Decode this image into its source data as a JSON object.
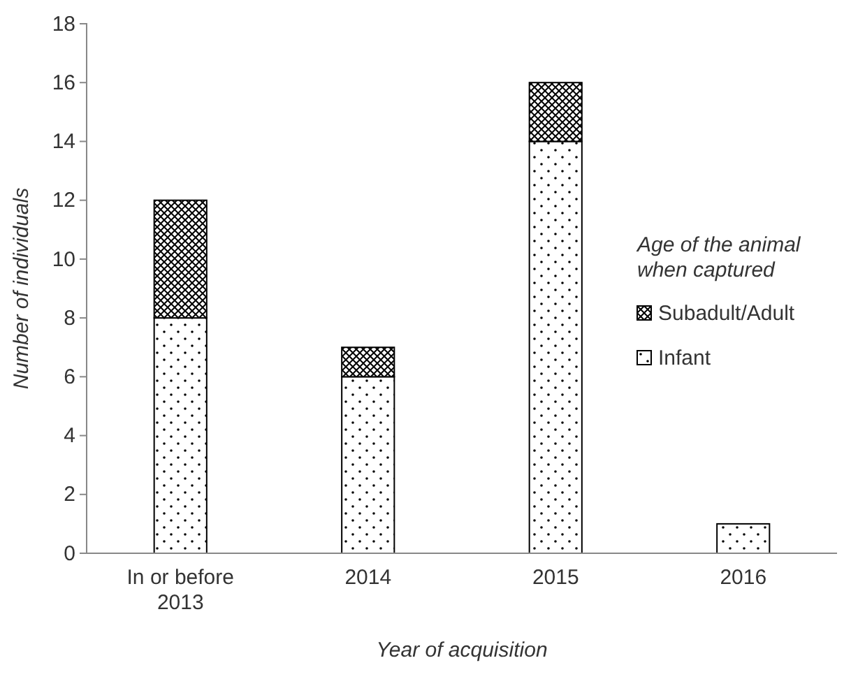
{
  "chart_data": {
    "type": "bar",
    "stacked": true,
    "xlabel": "Year of acquisition",
    "ylabel": "Number of individuals",
    "categories": [
      "In or before 2013",
      "2014",
      "2015",
      "2016"
    ],
    "series": [
      {
        "name": "Infant",
        "color": "#000000",
        "values": [
          8,
          6,
          14,
          1
        ]
      },
      {
        "name": "Subadult/Adult",
        "color": "#000000",
        "values": [
          4,
          1,
          2,
          0
        ]
      }
    ],
    "ylim": [
      0,
      18
    ],
    "yticks": [
      0,
      2,
      4,
      6,
      8,
      10,
      12,
      14,
      16,
      18
    ],
    "grid": false,
    "legend": "right",
    "legend_title": "Age of the animal when captured"
  }
}
